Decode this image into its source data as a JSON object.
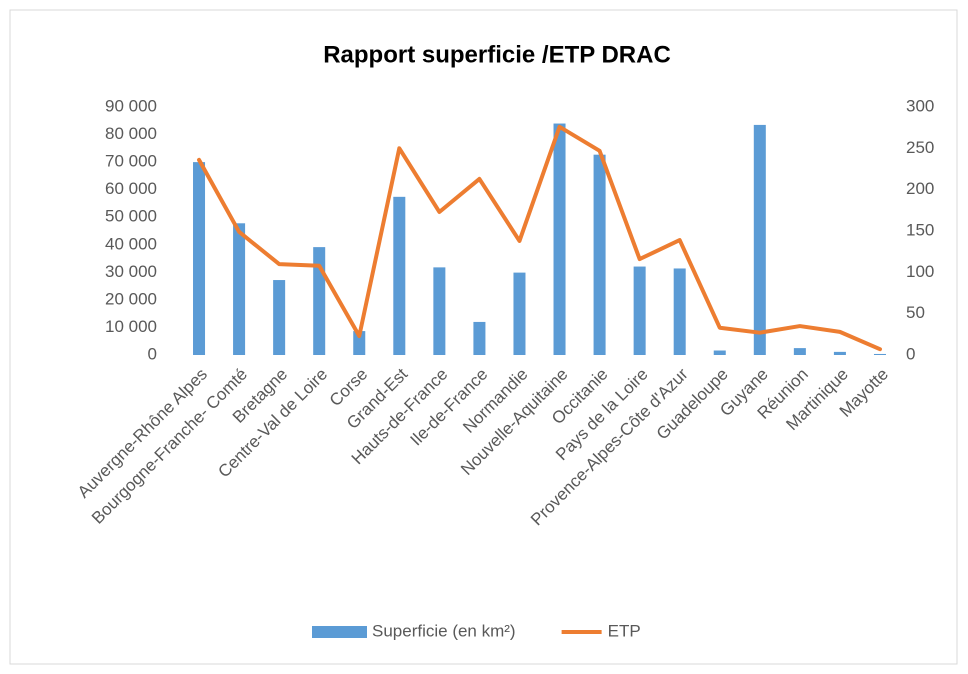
{
  "chart_data": {
    "type": "bar",
    "title": "Rapport superficie /ETP DRAC",
    "categories": [
      "Auvergne-Rhône Alpes",
      "Bourgogne-Franche- Comté",
      "Bretagne",
      "Centre-Val de Loire",
      "Corse",
      "Grand-Est",
      "Hauts-de-France",
      "Ile-de-France",
      "Normandie",
      "Nouvelle-Aquitaine",
      "Occitanie",
      "Pays de la Loire",
      "Provence-Alpes-Côte d'Azur",
      "Guadeloupe",
      "Guyane",
      "Réunion",
      "Martinique",
      "Mayotte"
    ],
    "series": [
      {
        "name": "Superficie (en km²)",
        "color": "#5b9bd5",
        "type": "bar",
        "values": [
          70000,
          47800,
          27200,
          39150,
          8680,
          57400,
          31800,
          12000,
          29900,
          84000,
          72700,
          32100,
          31400,
          1630,
          83500,
          2500,
          1130,
          374
        ]
      },
      {
        "name": "ETP",
        "color": "#ed7d31",
        "type": "line",
        "axis": "y2",
        "values": [
          236,
          149,
          110,
          108,
          23,
          250,
          173,
          213,
          138,
          276,
          247,
          116,
          139,
          33,
          27,
          35,
          28,
          7
        ]
      }
    ],
    "ylim": [
      0,
      90000
    ],
    "yticks": [
      {
        "value": 0,
        "label": "0"
      },
      {
        "value": 10000,
        "label": "10 000"
      },
      {
        "value": 20000,
        "label": "20 000"
      },
      {
        "value": 30000,
        "label": "30 000"
      },
      {
        "value": 40000,
        "label": "40 000"
      },
      {
        "value": 50000,
        "label": "50 000"
      },
      {
        "value": 60000,
        "label": "60 000"
      },
      {
        "value": 70000,
        "label": "70 000"
      },
      {
        "value": 80000,
        "label": "80 000"
      },
      {
        "value": 90000,
        "label": "90 000"
      }
    ],
    "y2lim": [
      0,
      300
    ],
    "y2ticks": [
      0,
      50,
      100,
      150,
      200,
      250,
      300
    ],
    "legend": "bottom"
  }
}
